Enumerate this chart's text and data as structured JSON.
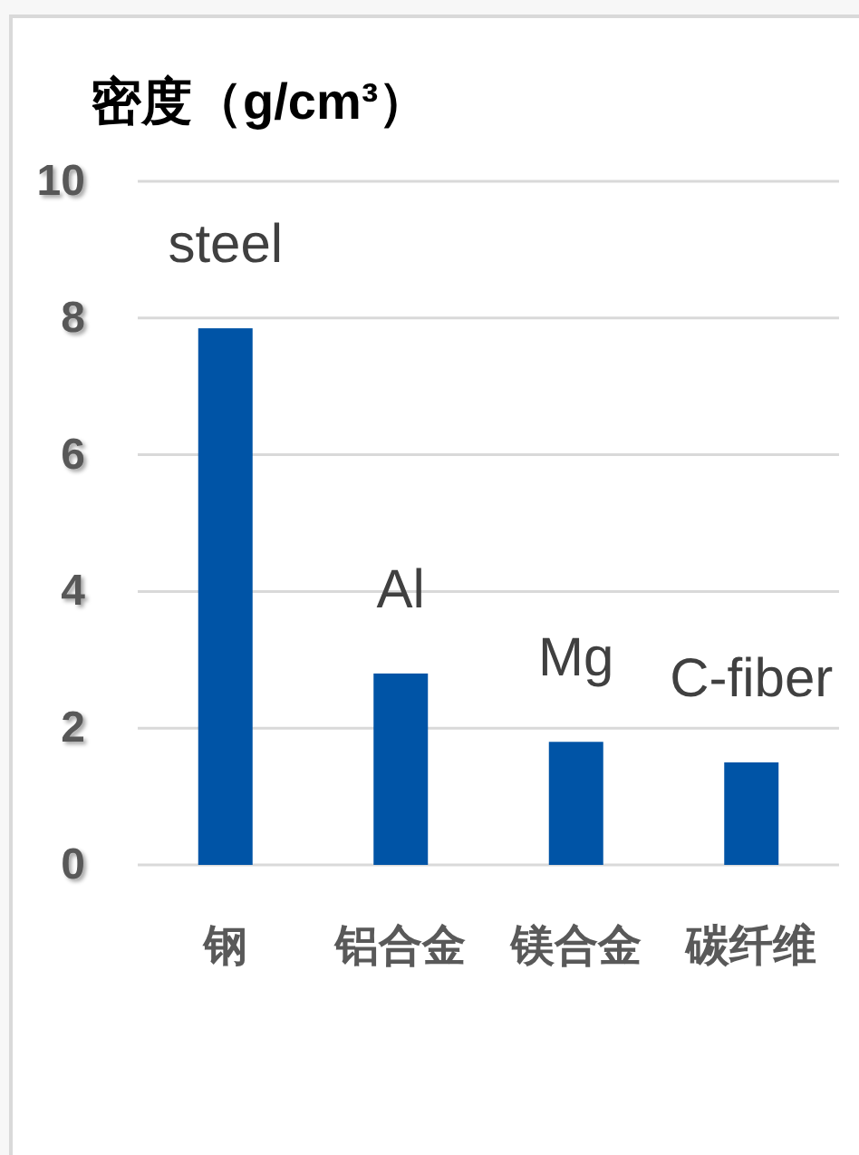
{
  "chart_data": {
    "type": "bar",
    "ylabel": "密度（g/cm³）",
    "categories": [
      "钢",
      "铝合金",
      "镁合金",
      "碳纤维"
    ],
    "values": [
      7.85,
      2.8,
      1.8,
      1.5
    ],
    "color": "#0054a6",
    "ylim": [
      0,
      10
    ],
    "yticks": [
      0,
      2,
      4,
      6,
      8,
      10
    ],
    "grid": "y",
    "annotations": [
      {
        "text": "steel",
        "x": "钢",
        "y": 7.85
      },
      {
        "text": "Al",
        "x": "铝合金",
        "y": 2.8
      },
      {
        "text": "Mg",
        "x": "镁合金",
        "y": 1.8
      },
      {
        "text": "C-fiber",
        "x": "碳纤维",
        "y": 1.5
      }
    ]
  }
}
